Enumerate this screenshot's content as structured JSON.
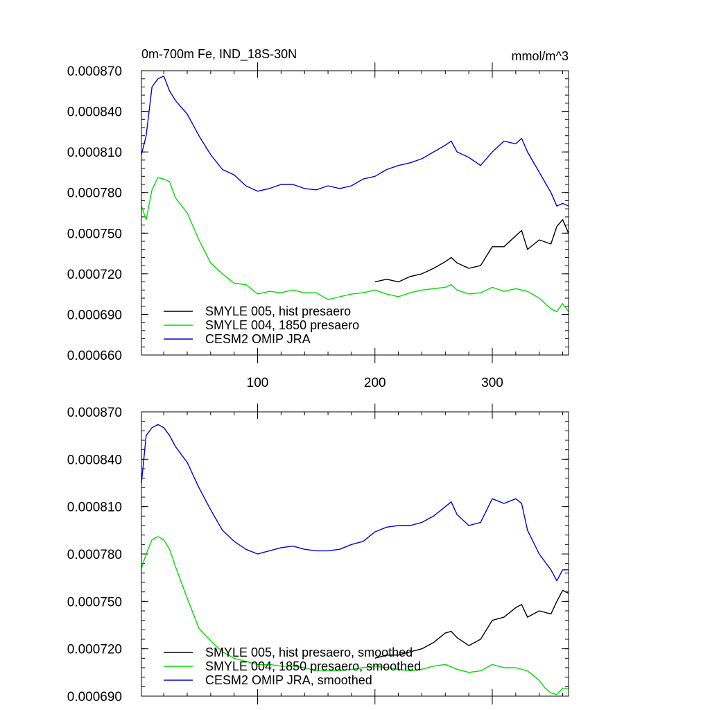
{
  "chart_data": [
    {
      "type": "line",
      "title": "0m-700m Fe, IND_18S-30N",
      "units": "mmol/m^3",
      "xlabel": "",
      "ylabel": "",
      "xlim": [
        1,
        365
      ],
      "ylim": [
        0.00066,
        0.00087
      ],
      "x_ticks": [
        100,
        200,
        300
      ],
      "x_tick_labels": [
        "100",
        "200",
        "300"
      ],
      "y_ticks": [
        0.00066,
        0.00069,
        0.00072,
        0.00075,
        0.00078,
        0.00081,
        0.00084,
        0.00087
      ],
      "y_tick_labels": [
        "0.000660",
        "0.000690",
        "0.000720",
        "0.000750",
        "0.000780",
        "0.000810",
        "0.000840",
        "0.000870"
      ],
      "legend_position": "bottom-left",
      "series": [
        {
          "name": "SMYLE 005, hist presaero",
          "color": "#000000",
          "x": [
            200,
            210,
            220,
            230,
            240,
            250,
            260,
            265,
            270,
            280,
            290,
            300,
            310,
            320,
            325,
            330,
            340,
            350,
            355,
            360,
            365
          ],
          "values": [
            0.000714,
            0.000716,
            0.000714,
            0.000718,
            0.00072,
            0.000724,
            0.000729,
            0.000732,
            0.000728,
            0.000724,
            0.000726,
            0.00074,
            0.00074,
            0.000748,
            0.000752,
            0.000738,
            0.000745,
            0.000742,
            0.000755,
            0.00076,
            0.00075
          ]
        },
        {
          "name": "SMYLE 004, 1850 presaero",
          "color": "#00dd00",
          "x": [
            1,
            5,
            10,
            15,
            20,
            25,
            30,
            40,
            50,
            60,
            70,
            80,
            90,
            100,
            110,
            120,
            130,
            140,
            150,
            160,
            170,
            180,
            190,
            200,
            210,
            220,
            230,
            240,
            250,
            260,
            265,
            270,
            280,
            290,
            300,
            310,
            320,
            330,
            340,
            350,
            355,
            360,
            365
          ],
          "values": [
            0.00077,
            0.00076,
            0.000782,
            0.000791,
            0.00079,
            0.000788,
            0.000776,
            0.000765,
            0.000745,
            0.000728,
            0.00072,
            0.000713,
            0.000712,
            0.000705,
            0.000707,
            0.000706,
            0.000708,
            0.000706,
            0.000706,
            0.000701,
            0.000703,
            0.000705,
            0.000706,
            0.000708,
            0.000705,
            0.000703,
            0.000706,
            0.000708,
            0.000709,
            0.00071,
            0.000712,
            0.000708,
            0.000705,
            0.000706,
            0.00071,
            0.000707,
            0.000709,
            0.000707,
            0.000702,
            0.000694,
            0.000692,
            0.000698,
            0.000692
          ]
        },
        {
          "name": "CESM2 OMIP JRA",
          "color": "#0000dd",
          "x": [
            1,
            5,
            10,
            15,
            20,
            25,
            30,
            40,
            50,
            60,
            70,
            80,
            90,
            100,
            110,
            120,
            130,
            140,
            150,
            160,
            170,
            180,
            190,
            200,
            210,
            220,
            230,
            240,
            250,
            260,
            265,
            270,
            280,
            290,
            300,
            310,
            320,
            325,
            330,
            340,
            350,
            355,
            360,
            365
          ],
          "values": [
            0.000808,
            0.000822,
            0.000858,
            0.000864,
            0.000866,
            0.000855,
            0.000848,
            0.000838,
            0.000822,
            0.000808,
            0.000797,
            0.000793,
            0.000785,
            0.000781,
            0.000783,
            0.000786,
            0.000786,
            0.000783,
            0.000782,
            0.000785,
            0.000783,
            0.000785,
            0.00079,
            0.000792,
            0.000797,
            0.0008,
            0.000802,
            0.000805,
            0.00081,
            0.000815,
            0.000818,
            0.00081,
            0.000806,
            0.0008,
            0.00081,
            0.000818,
            0.000816,
            0.00082,
            0.00081,
            0.000795,
            0.00078,
            0.00077,
            0.000772,
            0.00077
          ]
        }
      ]
    },
    {
      "type": "line",
      "title": "",
      "xlabel": "",
      "ylabel": "",
      "xlim": [
        1,
        365
      ],
      "ylim": [
        0.00069,
        0.00087
      ],
      "x_ticks": [
        100,
        200,
        300
      ],
      "y_ticks": [
        0.00069,
        0.00072,
        0.00075,
        0.00078,
        0.00081,
        0.00084,
        0.00087
      ],
      "y_tick_labels": [
        "0.000690",
        "0.000720",
        "0.000750",
        "0.000780",
        "0.000810",
        "0.000840",
        "0.000870"
      ],
      "legend_position": "bottom-left",
      "series": [
        {
          "name": "SMYLE 005, hist presaero, smoothed",
          "color": "#000000",
          "x": [
            200,
            210,
            220,
            230,
            240,
            250,
            260,
            265,
            270,
            280,
            290,
            300,
            310,
            320,
            325,
            330,
            340,
            350,
            355,
            360,
            365
          ],
          "values": [
            0.000714,
            0.000716,
            0.000716,
            0.000718,
            0.00072,
            0.000724,
            0.00073,
            0.000731,
            0.000727,
            0.000722,
            0.000726,
            0.000738,
            0.00074,
            0.000746,
            0.000748,
            0.00074,
            0.000744,
            0.000742,
            0.00075,
            0.000757,
            0.000755
          ]
        },
        {
          "name": "SMYLE 004, 1850 presaero, smoothed",
          "color": "#00dd00",
          "x": [
            1,
            5,
            10,
            15,
            20,
            25,
            30,
            40,
            50,
            60,
            70,
            80,
            90,
            100,
            110,
            120,
            130,
            140,
            150,
            160,
            170,
            180,
            190,
            200,
            210,
            220,
            230,
            240,
            250,
            260,
            270,
            280,
            290,
            300,
            310,
            320,
            330,
            340,
            345,
            350,
            355,
            360,
            365
          ],
          "values": [
            0.000771,
            0.00078,
            0.000789,
            0.000791,
            0.000789,
            0.000783,
            0.000772,
            0.000752,
            0.000733,
            0.000725,
            0.000718,
            0.000714,
            0.000712,
            0.00071,
            0.00071,
            0.000709,
            0.000709,
            0.000708,
            0.000706,
            0.000706,
            0.000706,
            0.000707,
            0.000708,
            0.000709,
            0.000708,
            0.000707,
            0.000706,
            0.000707,
            0.000709,
            0.00071,
            0.000707,
            0.000705,
            0.000706,
            0.00071,
            0.000708,
            0.000708,
            0.000706,
            0.0007,
            0.000695,
            0.000692,
            0.000691,
            0.000695,
            0.000695
          ]
        },
        {
          "name": "CESM2 OMIP JRA, smoothed",
          "color": "#0000dd",
          "x": [
            1,
            5,
            10,
            15,
            20,
            25,
            30,
            40,
            50,
            60,
            70,
            80,
            90,
            100,
            110,
            120,
            130,
            140,
            150,
            160,
            170,
            180,
            190,
            200,
            210,
            220,
            230,
            240,
            250,
            260,
            265,
            270,
            280,
            290,
            300,
            310,
            320,
            325,
            330,
            340,
            350,
            355,
            360,
            365
          ],
          "values": [
            0.000825,
            0.000855,
            0.00086,
            0.000862,
            0.00086,
            0.000855,
            0.000848,
            0.000838,
            0.000822,
            0.000808,
            0.000795,
            0.000788,
            0.000783,
            0.00078,
            0.000782,
            0.000784,
            0.000785,
            0.000783,
            0.000782,
            0.000782,
            0.000783,
            0.000786,
            0.000788,
            0.000794,
            0.000797,
            0.000798,
            0.000798,
            0.0008,
            0.000804,
            0.00081,
            0.000813,
            0.000805,
            0.000798,
            0.0008,
            0.000815,
            0.000812,
            0.000815,
            0.000812,
            0.000795,
            0.00078,
            0.00077,
            0.000763,
            0.00077,
            0.00077
          ]
        }
      ]
    }
  ]
}
